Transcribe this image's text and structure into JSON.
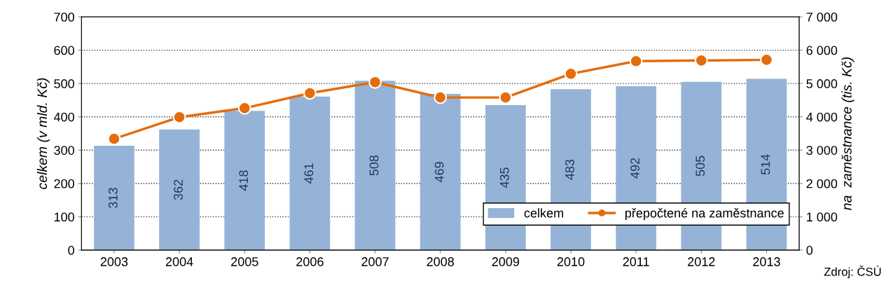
{
  "chart_data": {
    "type": "bar",
    "categories": [
      "2003",
      "2004",
      "2005",
      "2006",
      "2007",
      "2008",
      "2009",
      "2010",
      "2011",
      "2012",
      "2013"
    ],
    "series": [
      {
        "name": "celkem",
        "color": "#95b3d7",
        "values": [
          313,
          362,
          418,
          461,
          508,
          469,
          435,
          483,
          492,
          505,
          514
        ],
        "value_labels": [
          "313",
          "362",
          "418",
          "461",
          "508",
          "469",
          "435",
          "483",
          "492",
          "505",
          "514"
        ]
      },
      {
        "name": "přepočtené na zaměstnance",
        "type": "line",
        "axis": "y2",
        "color": "#e46c0a",
        "marker": "circle",
        "values": [
          3340,
          3990,
          4260,
          4710,
          5040,
          4580,
          4580,
          5290,
          5670,
          5690,
          5710
        ]
      }
    ],
    "ylabel": "celkem (v mld. Kč)",
    "y2label": "na  zaměstnance (tis. Kč)",
    "ylim": [
      0,
      700
    ],
    "yticks": [
      0,
      100,
      200,
      300,
      400,
      500,
      600,
      700
    ],
    "y2lim": [
      0,
      7000
    ],
    "y2ticks": [
      {
        "value": 0,
        "label": "0"
      },
      {
        "value": 1000,
        "label": "1 000"
      },
      {
        "value": 2000,
        "label": "2 000"
      },
      {
        "value": 3000,
        "label": "3 000"
      },
      {
        "value": 4000,
        "label": "4 000"
      },
      {
        "value": 5000,
        "label": "5 000"
      },
      {
        "value": 6000,
        "label": "6 000"
      },
      {
        "value": 7000,
        "label": "7 000"
      }
    ],
    "grid": "y",
    "legend": "bottom right",
    "annotations": [
      "Zdroj: ČSÚ"
    ]
  }
}
